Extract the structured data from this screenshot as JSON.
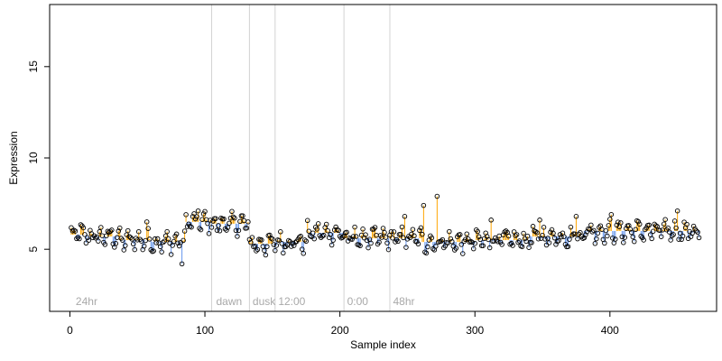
{
  "chart_data": {
    "type": "scatter",
    "title": "",
    "xlabel": "Sample index",
    "ylabel": "Expression",
    "xlim": [
      -15,
      479
    ],
    "ylim": [
      1.6,
      18.4
    ],
    "x_ticks": [
      0,
      100,
      200,
      300,
      400
    ],
    "y_ticks": [
      5,
      10,
      15
    ],
    "grid": false,
    "legend": "none",
    "colors": {
      "point_fill_high": "#ff8c00",
      "point_fill_low": "#5b9bd5",
      "marker_stroke": "#000000",
      "segment_above": "#ffa500",
      "segment_below": "#6495ed",
      "phase_line": "#d3d3d3",
      "phase_label": "#a9a9a9"
    },
    "phase_boundaries": [
      105,
      133,
      152,
      203,
      237
    ],
    "phase_labels": [
      {
        "x": 3,
        "label": "24hr"
      },
      {
        "x": 107,
        "label": "dawn"
      },
      {
        "x": 134,
        "label": "dusk"
      },
      {
        "x": 153,
        "label": "12:00"
      },
      {
        "x": 204,
        "label": "0:00"
      },
      {
        "x": 238,
        "label": "48hr"
      }
    ],
    "segments": [
      {
        "x0": 1,
        "x1": 12,
        "center": 5.8
      },
      {
        "x0": 13,
        "x1": 36,
        "center": 5.7
      },
      {
        "x0": 37,
        "x1": 60,
        "center": 5.5
      },
      {
        "x0": 61,
        "x1": 85,
        "center": 5.4
      },
      {
        "x0": 86,
        "x1": 104,
        "center": 6.5
      },
      {
        "x0": 105,
        "x1": 132,
        "center": 6.4
      },
      {
        "x0": 133,
        "x1": 151,
        "center": 5.3
      },
      {
        "x0": 152,
        "x1": 175,
        "center": 5.4
      },
      {
        "x0": 176,
        "x1": 202,
        "center": 5.9
      },
      {
        "x0": 203,
        "x1": 236,
        "center": 5.6
      },
      {
        "x0": 237,
        "x1": 260,
        "center": 5.6
      },
      {
        "x0": 261,
        "x1": 300,
        "center": 5.4
      },
      {
        "x0": 301,
        "x1": 340,
        "center": 5.5
      },
      {
        "x0": 341,
        "x1": 380,
        "center": 5.7
      },
      {
        "x0": 381,
        "x1": 420,
        "center": 6.0
      },
      {
        "x0": 421,
        "x1": 466,
        "center": 6.0
      }
    ],
    "spikes": [
      {
        "x": 57,
        "y": 6.5
      },
      {
        "x": 83,
        "y": 4.2
      },
      {
        "x": 95,
        "y": 7.1
      },
      {
        "x": 248,
        "y": 6.8
      },
      {
        "x": 262,
        "y": 7.4
      },
      {
        "x": 272,
        "y": 7.9
      },
      {
        "x": 312,
        "y": 6.6
      },
      {
        "x": 348,
        "y": 6.6
      },
      {
        "x": 375,
        "y": 6.8
      },
      {
        "x": 401,
        "y": 6.9
      },
      {
        "x": 450,
        "y": 7.1
      }
    ]
  }
}
